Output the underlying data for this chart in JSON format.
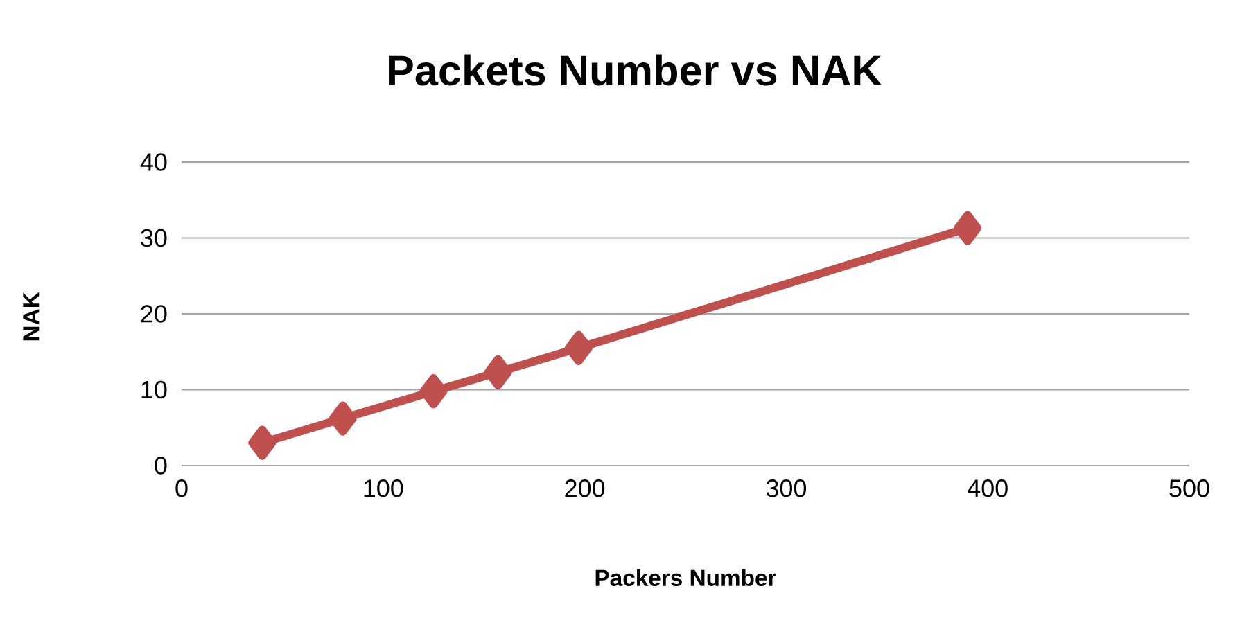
{
  "chart_data": {
    "type": "line",
    "title": "Packets Number vs NAK",
    "xlabel": "Packers Number",
    "ylabel": "NAK",
    "x": [
      40,
      80,
      125,
      157,
      197,
      390
    ],
    "series": [
      {
        "color": "#c0504d",
        "values": [
          3,
          6.2,
          9.8,
          12.3,
          15.5,
          31.3
        ]
      }
    ],
    "xlim": [
      0,
      500
    ],
    "xticks": [
      0,
      100,
      200,
      300,
      400,
      500
    ],
    "ylim": [
      0,
      40
    ],
    "yticks": [
      0,
      10,
      20,
      30,
      40
    ],
    "grid": "y",
    "marker": "diamond",
    "line_style": "solid"
  }
}
